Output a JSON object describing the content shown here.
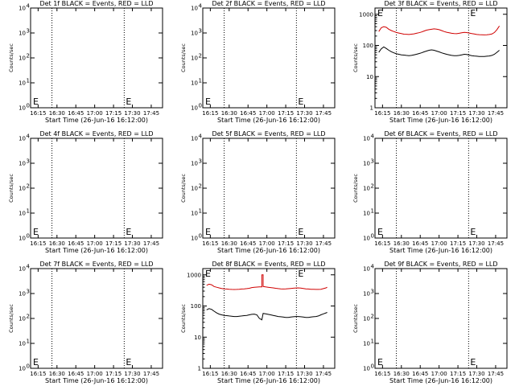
{
  "chart_data": [
    {
      "type": "line",
      "title": "Det 1f BLACK = Events, RED = LLD",
      "xlabel": "Start Time (26-Jun-16 16:12:00)",
      "ylabel": "Counts/sec",
      "yscale": "log",
      "ytick_style": "exp",
      "xticks": [
        "16:15",
        "16:30",
        "16:45",
        "17:00",
        "17:15",
        "17:30",
        "17:45"
      ],
      "markers": [
        "E",
        "E"
      ],
      "series": []
    },
    {
      "type": "line",
      "title": "Det 2f BLACK = Events, RED = LLD",
      "xlabel": "Start Time (26-Jun-16 16:12:00)",
      "ylabel": "Counts/sec",
      "yscale": "log",
      "ytick_style": "exp",
      "xticks": [
        "16:15",
        "16:30",
        "16:45",
        "17:00",
        "17:15",
        "17:30",
        "17:45"
      ],
      "markers": [
        "E",
        "E"
      ],
      "series": []
    },
    {
      "type": "line",
      "title": "Det 3f BLACK = Events, RED = LLD",
      "xlabel": "Start Time (26-Jun-16 16:12:00)",
      "ylabel": "Counts/sec",
      "yscale": "log",
      "ytick_style": "num",
      "yticks": [
        "1",
        "10",
        "100",
        "1000"
      ],
      "xticks": [
        "16:15",
        "16:30",
        "16:45",
        "17:00",
        "17:15",
        "17:30",
        "17:45"
      ],
      "markers": [
        "E",
        "E"
      ],
      "series": [
        {
          "color": "#d00000",
          "x": [
            0,
            2,
            4,
            6,
            8,
            10,
            12,
            14,
            16,
            18,
            20,
            22,
            24,
            26,
            28,
            30,
            32,
            34,
            36,
            38,
            40,
            42,
            44,
            46,
            48,
            50,
            52,
            54,
            56,
            58,
            60,
            62,
            64,
            66,
            68,
            70,
            72,
            74,
            76,
            78,
            80,
            82,
            84,
            86,
            88,
            90,
            92,
            94,
            96
          ],
          "y": [
            280,
            370,
            400,
            380,
            330,
            300,
            280,
            260,
            250,
            240,
            230,
            228,
            225,
            230,
            235,
            245,
            255,
            270,
            290,
            310,
            320,
            330,
            340,
            335,
            320,
            300,
            280,
            265,
            255,
            245,
            240,
            238,
            245,
            255,
            262,
            258,
            250,
            240,
            232,
            225,
            222,
            220,
            218,
            220,
            225,
            232,
            260,
            320,
            420
          ]
        },
        {
          "color": "#000000",
          "x": [
            0,
            2,
            4,
            6,
            8,
            10,
            12,
            14,
            16,
            18,
            20,
            22,
            24,
            26,
            28,
            30,
            32,
            34,
            36,
            38,
            40,
            42,
            44,
            46,
            48,
            50,
            52,
            54,
            56,
            58,
            60,
            62,
            64,
            66,
            68,
            70,
            72,
            74,
            76,
            78,
            80,
            82,
            84,
            86,
            88,
            90,
            92,
            94,
            96
          ],
          "y": [
            60,
            78,
            90,
            80,
            70,
            63,
            58,
            54,
            52,
            50,
            49,
            48,
            47,
            48,
            50,
            52,
            55,
            58,
            62,
            66,
            70,
            72,
            70,
            66,
            62,
            58,
            55,
            52,
            50,
            48,
            47,
            47,
            48,
            50,
            52,
            51,
            49,
            47,
            46,
            45,
            44,
            44,
            44,
            45,
            46,
            48,
            52,
            60,
            70
          ]
        }
      ]
    },
    {
      "type": "line",
      "title": "Det 4f BLACK = Events, RED = LLD",
      "xlabel": "Start Time (26-Jun-16 16:12:00)",
      "ylabel": "Counts/sec",
      "yscale": "log",
      "ytick_style": "exp",
      "xticks": [
        "16:15",
        "16:30",
        "16:45",
        "17:00",
        "17:15",
        "17:30",
        "17:45"
      ],
      "markers": [
        "E",
        "E"
      ],
      "series": []
    },
    {
      "type": "line",
      "title": "Det 5f BLACK = Events, RED = LLD",
      "xlabel": "Start Time (26-Jun-16 16:12:00)",
      "ylabel": "Counts/sec",
      "yscale": "log",
      "ytick_style": "exp",
      "xticks": [
        "16:15",
        "16:30",
        "16:45",
        "17:00",
        "17:15",
        "17:30",
        "17:45"
      ],
      "markers": [
        "E",
        "E"
      ],
      "series": []
    },
    {
      "type": "line",
      "title": "Det 6f BLACK = Events, RED = LLD",
      "xlabel": "Start Time (26-Jun-16 16:12:00)",
      "ylabel": "Counts/sec",
      "yscale": "log",
      "ytick_style": "exp",
      "xticks": [
        "16:15",
        "16:30",
        "16:45",
        "17:00",
        "17:15",
        "17:30",
        "17:45"
      ],
      "markers": [
        "E",
        "E"
      ],
      "series": []
    },
    {
      "type": "line",
      "title": "Det 7f BLACK = Events, RED = LLD",
      "xlabel": "Start Time (26-Jun-16 16:12:00)",
      "ylabel": "Counts/sec",
      "yscale": "log",
      "ytick_style": "exp",
      "xticks": [
        "16:15",
        "16:30",
        "16:45",
        "17:00",
        "17:15",
        "17:30",
        "17:45"
      ],
      "markers": [
        "E",
        "E"
      ],
      "series": []
    },
    {
      "type": "line",
      "title": "Det 8f BLACK = Events, RED = LLD",
      "xlabel": "Start Time (26-Jun-16 16:12:00)",
      "ylabel": "Counts/sec",
      "yscale": "log",
      "ytick_style": "num",
      "yticks": [
        "1",
        "10",
        "100",
        "1000"
      ],
      "xticks": [
        "16:15",
        "16:30",
        "16:45",
        "17:00",
        "17:15",
        "17:30",
        "17:45"
      ],
      "markers": [
        "E",
        "E"
      ],
      "series": [
        {
          "color": "#d00000",
          "x": [
            0,
            2,
            4,
            6,
            8,
            10,
            12,
            14,
            16,
            18,
            20,
            22,
            24,
            26,
            28,
            30,
            32,
            34,
            36,
            38,
            40,
            42,
            44,
            44,
            44.5,
            45,
            45,
            47,
            49,
            51,
            53,
            55,
            57,
            59,
            61,
            63,
            65,
            67,
            69,
            71,
            73,
            75,
            77,
            79,
            81,
            83,
            85,
            87,
            89,
            91,
            93,
            95,
            96
          ],
          "y": [
            460,
            500,
            480,
            420,
            400,
            380,
            365,
            355,
            350,
            345,
            340,
            338,
            340,
            345,
            350,
            355,
            360,
            370,
            390,
            400,
            405,
            410,
            410,
            1000,
            1000,
            1000,
            420,
            410,
            400,
            390,
            380,
            370,
            360,
            355,
            350,
            352,
            358,
            365,
            372,
            378,
            380,
            375,
            365,
            355,
            350,
            345,
            342,
            340,
            340,
            345,
            360,
            380,
            400
          ]
        },
        {
          "color": "#000000",
          "x": [
            0,
            2,
            4,
            6,
            8,
            10,
            12,
            14,
            16,
            18,
            20,
            22,
            24,
            26,
            28,
            30,
            32,
            34,
            36,
            38,
            40,
            42,
            44,
            45,
            47,
            49,
            51,
            53,
            55,
            57,
            59,
            61,
            63,
            65,
            67,
            69,
            71,
            73,
            75,
            77,
            79,
            81,
            83,
            85,
            87,
            89,
            91,
            93,
            95,
            96
          ],
          "y": [
            75,
            82,
            78,
            68,
            60,
            55,
            52,
            50,
            49,
            48,
            47,
            46,
            46,
            47,
            48,
            49,
            50,
            52,
            54,
            55,
            52,
            40,
            36,
            58,
            56,
            54,
            52,
            50,
            48,
            46,
            45,
            44,
            43,
            43,
            44,
            45,
            46,
            46,
            45,
            44,
            43,
            43,
            44,
            45,
            46,
            48,
            52,
            56,
            60,
            62
          ]
        }
      ]
    },
    {
      "type": "line",
      "title": "Det 9f BLACK = Events, RED = LLD",
      "xlabel": "Start Time (26-Jun-16 16:12:00)",
      "ylabel": "Counts/sec",
      "yscale": "log",
      "ytick_style": "exp",
      "xticks": [
        "16:15",
        "16:30",
        "16:45",
        "17:00",
        "17:15",
        "17:30",
        "17:45"
      ],
      "markers": [
        "E",
        "E"
      ],
      "series": []
    }
  ]
}
